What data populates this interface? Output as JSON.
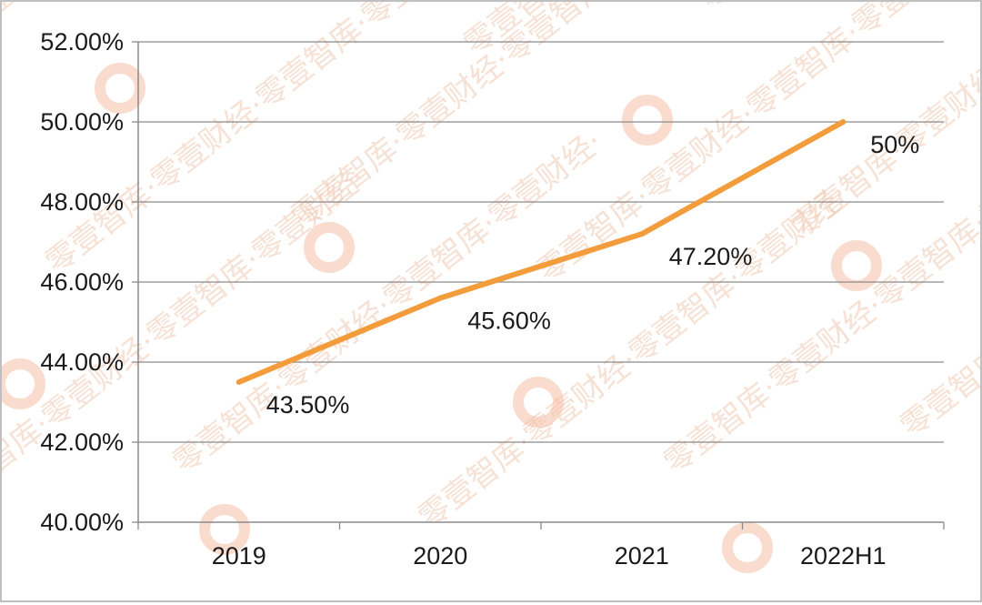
{
  "chart_data": {
    "type": "line",
    "categories": [
      "2019",
      "2020",
      "2021",
      "2022H1"
    ],
    "series": [
      {
        "values": [
          43.5,
          45.6,
          47.2,
          50.0
        ],
        "data_labels": [
          "43.50%",
          "45.60%",
          "47.20%",
          "50%"
        ]
      }
    ],
    "ylim": [
      40,
      52
    ],
    "y_ticks": [
      40,
      42,
      44,
      46,
      48,
      50,
      52
    ],
    "y_tick_labels": [
      "40.00%",
      "42.00%",
      "44.00%",
      "46.00%",
      "48.00%",
      "50.00%",
      "52.00%"
    ],
    "title": "",
    "xlabel": "",
    "ylabel": "",
    "grid": true,
    "legend": "none",
    "line_color": "#f39c3c",
    "grid_color": "#8a8a8a"
  },
  "watermark": {
    "text": "零壹智库·零壹财经·",
    "logo_color": "#f6b9a0"
  }
}
